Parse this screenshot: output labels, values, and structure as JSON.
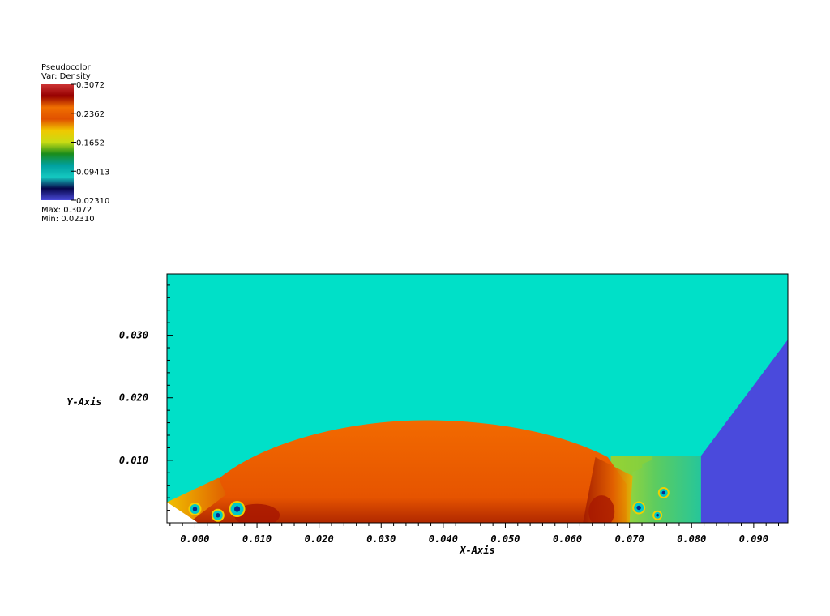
{
  "legend": {
    "title": "Pseudocolor",
    "var_label": "Var: Density",
    "ticks": [
      "0.3072",
      "0.2362",
      "0.1652",
      "0.09413",
      "0.02310"
    ],
    "max_label": "Max:  0.3072",
    "min_label": "Min:  0.02310",
    "colors": [
      "#4a4ad9",
      "#06064a",
      "#14c8c0",
      "#00a0a0",
      "#1a8c1a",
      "#c8dc14",
      "#f0c800",
      "#e05000",
      "#f07000",
      "#960000",
      "#cc3333"
    ]
  },
  "chart_data": {
    "type": "heatmap",
    "variable": "Density",
    "value_range": [
      0.0231,
      0.3072
    ],
    "xlabel": "X-Axis",
    "ylabel": "Y-Axis",
    "xlim": [
      -0.0045,
      0.0955
    ],
    "ylim": [
      0.0,
      0.0398
    ],
    "x_ticks": [
      "0.000",
      "0.010",
      "0.020",
      "0.030",
      "0.040",
      "0.050",
      "0.060",
      "0.070",
      "0.080",
      "0.090"
    ],
    "y_ticks": [
      "0.010",
      "0.020",
      "0.030"
    ],
    "x_tick_values": [
      0.0,
      0.01,
      0.02,
      0.03,
      0.04,
      0.05,
      0.06,
      0.07,
      0.08,
      0.09
    ],
    "y_tick_values": [
      0.01,
      0.02,
      0.03
    ],
    "regions": {
      "ambient_color": "#00e0c8",
      "incoming_flow_color": "#4a4adc",
      "shock_layer_color": "#f06000",
      "dense_shear_color": "#a81800",
      "dome": {
        "x_start": 0.004,
        "x_peak": 0.037,
        "y_peak": 0.0164,
        "x_end": 0.0665
      },
      "post_shock_block": {
        "x_start": 0.067,
        "x_end": 0.0815,
        "y_top": 0.0107
      },
      "oblique_shock": {
        "x_bottom": 0.0815,
        "y_bottom": 0.0107,
        "x_top": 0.0955,
        "y_top": 0.0293
      }
    }
  }
}
